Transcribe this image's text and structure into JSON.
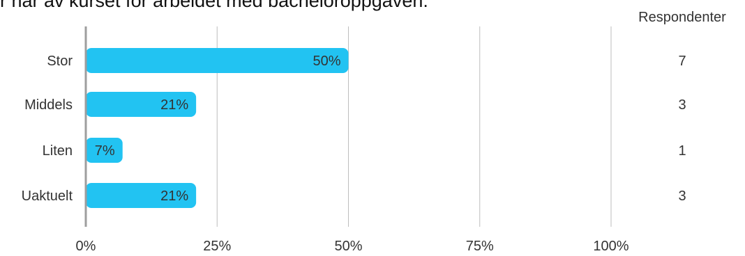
{
  "chart_data": {
    "type": "bar",
    "orientation": "horizontal",
    "title": "r har av kurset for arbeidet med bacheloroppgaven.",
    "categories": [
      "Stor",
      "Middels",
      "Liten",
      "Uaktuelt"
    ],
    "values": [
      50,
      21,
      7,
      21
    ],
    "value_labels": [
      "50%",
      "21%",
      "7%",
      "21%"
    ],
    "respondents_header": "Respondenter",
    "respondents": [
      "7",
      "3",
      "1",
      "3"
    ],
    "xlim": [
      0,
      100
    ],
    "x_ticks": [
      0,
      25,
      50,
      75,
      100
    ],
    "x_tick_labels": [
      "0%",
      "25%",
      "50%",
      "75%",
      "100%"
    ],
    "grid": true,
    "bar_color": "#22c3f2",
    "grid_color": "#bdbdbd",
    "axis_color": "#9e9e9e",
    "text_color": "#333333"
  }
}
